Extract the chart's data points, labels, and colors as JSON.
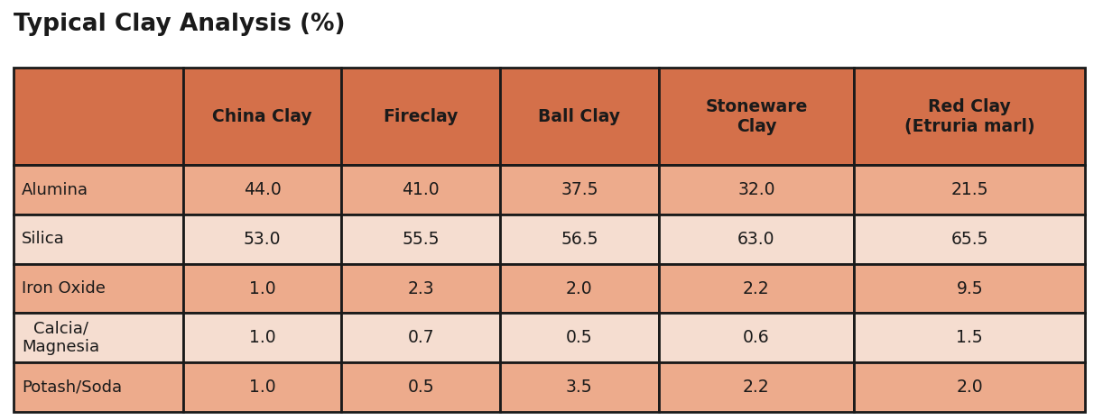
{
  "title": "Typical Clay Analysis (%)",
  "title_fontsize": 19,
  "title_fontweight": "bold",
  "col_headers": [
    "",
    "China Clay",
    "Fireclay",
    "Ball Clay",
    "Stoneware\nClay",
    "Red Clay\n(Etruria marl)"
  ],
  "row_labels": [
    "Alumina",
    "Silica",
    "Iron Oxide",
    "Calcia/\nMagnesia",
    "Potash/Soda"
  ],
  "data": [
    [
      44.0,
      41.0,
      37.5,
      32.0,
      21.5
    ],
    [
      53.0,
      55.5,
      56.5,
      63.0,
      65.5
    ],
    [
      1.0,
      2.3,
      2.0,
      2.2,
      9.5
    ],
    [
      1.0,
      0.7,
      0.5,
      0.6,
      1.5
    ],
    [
      1.0,
      0.5,
      3.5,
      2.2,
      2.0
    ]
  ],
  "header_bg_color": "#D4704A",
  "header_text_color": "#1a1a1a",
  "row_colors": [
    "#EDAB8C",
    "#F5DDD0",
    "#EDAB8C",
    "#F5DDD0",
    "#EDAB8C"
  ],
  "border_color": "#1a1a1a",
  "text_color": "#1a1a1a",
  "background_color": "#ffffff",
  "cell_text_fontsize": 13.5,
  "header_fontsize": 13.5,
  "row_label_fontsize": 13
}
